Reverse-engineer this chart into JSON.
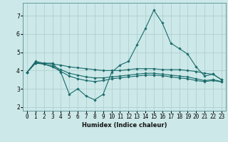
{
  "background_color": "#cce8e8",
  "grid_color": "#aacccc",
  "line_color": "#1a6b6b",
  "xlabel": "Humidex (Indice chaleur)",
  "xlim": [
    -0.5,
    23.5
  ],
  "ylim": [
    1.8,
    7.7
  ],
  "yticks": [
    2,
    3,
    4,
    5,
    6,
    7
  ],
  "xtick_labels": [
    "0",
    "1",
    "2",
    "3",
    "4",
    "5",
    "6",
    "7",
    "8",
    "9",
    "10",
    "11",
    "12",
    "13",
    "14",
    "15",
    "16",
    "17",
    "18",
    "19",
    "20",
    "21",
    "22",
    "23"
  ],
  "series": [
    {
      "x": [
        0,
        1,
        2,
        3,
        4,
        5,
        6,
        7,
        8,
        9,
        10,
        11,
        12,
        13,
        14,
        15,
        16,
        17,
        18,
        19,
        20,
        21,
        22,
        23
      ],
      "y": [
        3.9,
        4.5,
        4.4,
        4.4,
        3.9,
        2.7,
        3.0,
        2.6,
        2.4,
        2.7,
        3.9,
        4.3,
        4.5,
        5.4,
        6.3,
        7.3,
        6.6,
        5.5,
        5.2,
        4.9,
        4.2,
        3.7,
        3.8,
        3.5
      ]
    },
    {
      "x": [
        0,
        1,
        2,
        3,
        4,
        5,
        6,
        7,
        8,
        9,
        10,
        11,
        12,
        13,
        14,
        15,
        16,
        17,
        18,
        19,
        20,
        21,
        22,
        23
      ],
      "y": [
        3.9,
        4.4,
        4.4,
        4.35,
        4.3,
        4.2,
        4.15,
        4.1,
        4.05,
        4.0,
        4.0,
        4.0,
        4.05,
        4.1,
        4.1,
        4.1,
        4.05,
        4.05,
        4.05,
        4.0,
        3.95,
        3.85,
        3.8,
        3.5
      ]
    },
    {
      "x": [
        0,
        1,
        2,
        3,
        4,
        5,
        6,
        7,
        8,
        9,
        10,
        11,
        12,
        13,
        14,
        15,
        16,
        17,
        18,
        19,
        20,
        21,
        22,
        23
      ],
      "y": [
        3.9,
        4.4,
        4.35,
        4.25,
        4.05,
        3.85,
        3.75,
        3.65,
        3.6,
        3.6,
        3.65,
        3.7,
        3.75,
        3.8,
        3.85,
        3.85,
        3.8,
        3.75,
        3.7,
        3.65,
        3.55,
        3.45,
        3.5,
        3.4
      ]
    },
    {
      "x": [
        0,
        1,
        2,
        3,
        4,
        5,
        6,
        7,
        8,
        9,
        10,
        11,
        12,
        13,
        14,
        15,
        16,
        17,
        18,
        19,
        20,
        21,
        22,
        23
      ],
      "y": [
        3.9,
        4.45,
        4.35,
        4.2,
        3.95,
        3.7,
        3.55,
        3.45,
        3.4,
        3.45,
        3.55,
        3.6,
        3.65,
        3.7,
        3.75,
        3.75,
        3.72,
        3.65,
        3.6,
        3.55,
        3.45,
        3.4,
        3.45,
        3.38
      ]
    }
  ]
}
